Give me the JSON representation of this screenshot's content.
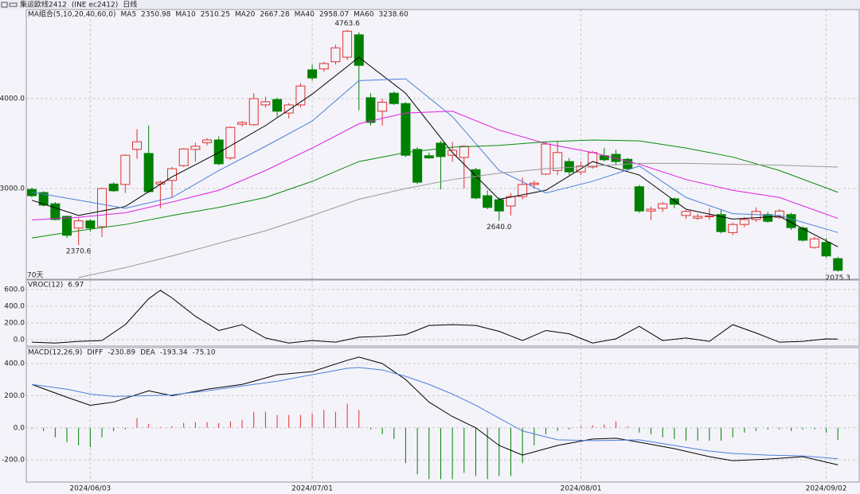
{
  "chart_data": [
    {
      "type": "candlestick",
      "title": "集运欧线2412",
      "subtitle": "(INE ec2412)",
      "period": "日线",
      "legend_title": "MA组合(5,10,20,40,60,0)",
      "legend_title_color": "#3a5fcd",
      "footnote": "70天",
      "categories": [
        null,
        null,
        null,
        null,
        null,
        "2024/06/03",
        null,
        null,
        null,
        null,
        null,
        null,
        null,
        null,
        null,
        null,
        null,
        null,
        null,
        null,
        null,
        null,
        null,
        null,
        "2024/07/01",
        null,
        null,
        null,
        null,
        null,
        null,
        null,
        null,
        null,
        null,
        null,
        null,
        null,
        null,
        null,
        null,
        null,
        null,
        null,
        null,
        null,
        null,
        "2024/08/01",
        null,
        null,
        null,
        null,
        null,
        null,
        null,
        null,
        null,
        null,
        null,
        null,
        null,
        null,
        null,
        null,
        null,
        null,
        null,
        null,
        "2024/09/02",
        null
      ],
      "open": [
        2990,
        2955,
        2830,
        2690,
        2560,
        2640,
        2575,
        3050,
        3045,
        3435,
        3390,
        3050,
        3090,
        3255,
        3435,
        3510,
        3540,
        3340,
        3715,
        3710,
        3930,
        3990,
        3840,
        3930,
        4320,
        4330,
        4410,
        4460,
        4710,
        4010,
        3860,
        4060,
        3945,
        3435,
        3365,
        3505,
        3370,
        3345,
        3210,
        2920,
        2875,
        2805,
        2910,
        3045,
        3160,
        3200,
        3300,
        3185,
        3240,
        3365,
        3380,
        3325,
        3020,
        2750,
        2780,
        2885,
        2700,
        2670,
        2690,
        2710,
        2510,
        2600,
        2655,
        2710,
        2680,
        2710,
        2560,
        2345,
        2400,
        2220
      ],
      "high": [
        3010,
        2970,
        2850,
        2700,
        2670,
        2660,
        3010,
        3070,
        3380,
        3660,
        3700,
        3090,
        3240,
        3450,
        3510,
        3560,
        3580,
        3690,
        3750,
        4060,
        4020,
        4010,
        3950,
        4170,
        4380,
        4410,
        4600,
        4763.6,
        4740,
        4060,
        4000,
        4080,
        3960,
        3460,
        3400,
        3530,
        3520,
        3480,
        3230,
        2980,
        2900,
        2950,
        3120,
        3090,
        3520,
        3530,
        3340,
        3300,
        3420,
        3450,
        3430,
        3340,
        3040,
        2800,
        2850,
        2900,
        2760,
        2720,
        2780,
        2760,
        2620,
        2680,
        2790,
        2740,
        2770,
        2730,
        2580,
        2460,
        2450,
        2240
      ],
      "low": [
        2900,
        2800,
        2645,
        2450,
        2370.6,
        2520,
        2460,
        2960,
        2950,
        3330,
        2950,
        2780,
        2900,
        3240,
        3300,
        3480,
        3260,
        3320,
        3690,
        3700,
        3900,
        3800,
        3780,
        3900,
        4200,
        4300,
        4380,
        4430,
        3870,
        3700,
        3700,
        3930,
        3350,
        3050,
        3330,
        2990,
        3300,
        3000,
        2880,
        2770,
        2640,
        2700,
        2880,
        3000,
        3150,
        3150,
        3150,
        3150,
        3220,
        3300,
        3260,
        3200,
        2730,
        2650,
        2740,
        2780,
        2660,
        2650,
        2650,
        2500,
        2480,
        2570,
        2630,
        2620,
        2660,
        2540,
        2410,
        2330,
        2230,
        2075.3
      ],
      "close": [
        2920,
        2815,
        2655,
        2480,
        2640,
        2560,
        3000,
        2975,
        3370,
        3520,
        2965,
        3070,
        3220,
        3440,
        3470,
        3540,
        3275,
        3680,
        3735,
        4000,
        3965,
        3860,
        3930,
        4140,
        4230,
        4390,
        4565,
        4750,
        4370,
        3735,
        3960,
        3945,
        3370,
        3070,
        3340,
        3355,
        3425,
        3470,
        2895,
        2790,
        2750,
        2910,
        3045,
        3060,
        3495,
        3400,
        3185,
        3250,
        3400,
        3320,
        3300,
        3220,
        2750,
        2770,
        2830,
        2825,
        2745,
        2690,
        2695,
        2520,
        2600,
        2655,
        2745,
        2635,
        2750,
        2565,
        2425,
        2440,
        2250,
        2090
      ],
      "up_color": "#e0302f",
      "down_color": "#008000",
      "series": [
        {
          "name": "MA5",
          "legend_value": "2350.98",
          "color": "#000000",
          "x": [
            0,
            4,
            8,
            12,
            16,
            20,
            24,
            28,
            32,
            36,
            40,
            44,
            48,
            52,
            56,
            60,
            64,
            69
          ],
          "values": [
            2870,
            2700,
            2800,
            3130,
            3400,
            3700,
            4050,
            4460,
            4060,
            3400,
            2880,
            2980,
            3300,
            3150,
            2770,
            2660,
            2690,
            2350.98
          ]
        },
        {
          "name": "MA10",
          "legend_value": "2510.25",
          "color": "#4f7fd8",
          "x": [
            0,
            4,
            8,
            12,
            16,
            20,
            24,
            28,
            32,
            36,
            40,
            44,
            48,
            52,
            56,
            60,
            64,
            69
          ],
          "values": [
            2960,
            2870,
            2780,
            2900,
            3200,
            3470,
            3750,
            4200,
            4220,
            3800,
            3200,
            2950,
            3080,
            3250,
            2900,
            2720,
            2700,
            2510.25
          ]
        },
        {
          "name": "MA20",
          "legend_value": "2667.28",
          "color": "#e020e0",
          "x": [
            0,
            4,
            8,
            12,
            16,
            20,
            24,
            28,
            32,
            36,
            40,
            44,
            48,
            52,
            56,
            60,
            64,
            69
          ],
          "values": [
            2650,
            2680,
            2730,
            2850,
            2980,
            3200,
            3450,
            3720,
            3840,
            3860,
            3650,
            3500,
            3400,
            3270,
            3100,
            2980,
            2900,
            2667.28
          ]
        },
        {
          "name": "MA40",
          "legend_value": "2958.07",
          "color": "#0a8a0a",
          "x": [
            0,
            4,
            8,
            12,
            16,
            20,
            24,
            28,
            32,
            36,
            40,
            44,
            48,
            52,
            56,
            60,
            64,
            69
          ],
          "values": [
            2450,
            2530,
            2600,
            2700,
            2790,
            2900,
            3080,
            3300,
            3400,
            3460,
            3480,
            3520,
            3540,
            3530,
            3450,
            3350,
            3200,
            2958.07
          ]
        },
        {
          "name": "MA60",
          "legend_value": "3238.60",
          "color": "#999999",
          "x": [
            4,
            8,
            12,
            16,
            20,
            24,
            28,
            32,
            36,
            40,
            44,
            48,
            52,
            56,
            60,
            64,
            69
          ],
          "values": [
            2010,
            2120,
            2250,
            2390,
            2530,
            2700,
            2880,
            3000,
            3100,
            3170,
            3220,
            3250,
            3280,
            3280,
            3270,
            3260,
            3238.6
          ]
        }
      ],
      "annotations": [
        {
          "value": 4763.6,
          "label": "4763.6"
        },
        {
          "value": 2370.6,
          "label": "2370.6"
        },
        {
          "value": 2640,
          "label": "2640.0"
        },
        {
          "value": 2075.3,
          "label": "2075.3"
        }
      ],
      "ylim": [
        1991,
        4991
      ],
      "yticks": [
        {
          "value": 3000,
          "label": "3000.0"
        },
        {
          "value": 4000,
          "label": "4000.0"
        }
      ],
      "grid": true
    },
    {
      "type": "line",
      "title": "VROC(12)",
      "title_color": "#3a5fcd",
      "series": [
        {
          "color": "#000000",
          "x": [
            0,
            2,
            4,
            6,
            8,
            10,
            11,
            12,
            14,
            16,
            18,
            20,
            22,
            24,
            26,
            28,
            30,
            32,
            34,
            36,
            38,
            40,
            42,
            44,
            46,
            48,
            50,
            52,
            54,
            56,
            58,
            60,
            62,
            64,
            66,
            68,
            69
          ],
          "values": [
            -30,
            -40,
            -20,
            -10,
            180,
            490,
            590,
            500,
            280,
            110,
            180,
            20,
            -40,
            -10,
            -30,
            30,
            40,
            60,
            170,
            180,
            170,
            100,
            -10,
            110,
            70,
            -40,
            10,
            160,
            -10,
            20,
            -20,
            180,
            80,
            -30,
            -20,
            10,
            6.97
          ]
        }
      ],
      "ylim": [
        -76,
        714
      ],
      "yticks": [
        {
          "value": 600,
          "label": "600.0"
        },
        {
          "value": 400,
          "label": "400.0"
        },
        {
          "value": 200,
          "label": "200.0"
        },
        {
          "value": 0,
          "label": "0.0"
        }
      ],
      "grid": true
    },
    {
      "type": "macd",
      "title": "MACD(12,26,9)",
      "title_color": "#3a5fcd",
      "series": [
        {
          "name": "DIFF",
          "legend_value": "-230.89",
          "color": "#000000",
          "x": [
            0,
            3,
            5,
            7,
            10,
            12,
            15,
            18,
            21,
            24,
            27,
            28,
            30,
            32,
            34,
            36,
            38,
            40,
            42,
            45,
            48,
            50,
            52,
            55,
            58,
            60,
            63,
            66,
            69
          ],
          "values": [
            270,
            190,
            140,
            160,
            230,
            200,
            240,
            270,
            330,
            350,
            420,
            440,
            400,
            300,
            160,
            70,
            0,
            -110,
            -170,
            -110,
            -70,
            -65,
            -90,
            -130,
            -180,
            -205,
            -195,
            -180,
            -230.89
          ]
        },
        {
          "name": "DEA",
          "legend_value": "-193.34",
          "color": "#4f7fd8",
          "x": [
            0,
            3,
            5,
            7,
            10,
            12,
            15,
            18,
            21,
            24,
            27,
            28,
            30,
            32,
            34,
            36,
            38,
            40,
            42,
            45,
            48,
            50,
            52,
            55,
            58,
            60,
            63,
            66,
            69
          ],
          "values": [
            270,
            240,
            210,
            195,
            200,
            205,
            230,
            260,
            290,
            330,
            370,
            375,
            360,
            320,
            270,
            210,
            140,
            60,
            -20,
            -75,
            -80,
            -78,
            -75,
            -110,
            -145,
            -160,
            -170,
            -175,
            -193.34
          ]
        }
      ],
      "histogram": {
        "legend_value": "-75.10",
        "up_color": "#e0302f",
        "down_color": "#008000",
        "values": [
          -5,
          -20,
          -60,
          -90,
          -110,
          -120,
          -60,
          -20,
          -10,
          60,
          25,
          5,
          10,
          30,
          35,
          35,
          30,
          40,
          50,
          100,
          100,
          80,
          80,
          80,
          90,
          110,
          100,
          150,
          110,
          -10,
          -40,
          -70,
          -220,
          -290,
          -320,
          -320,
          -320,
          -280,
          -300,
          -320,
          -300,
          -300,
          -220,
          -110,
          -40,
          -20,
          -10,
          10,
          15,
          20,
          40,
          10,
          -30,
          -40,
          -60,
          -70,
          -80,
          -80,
          -80,
          -80,
          -60,
          -30,
          -20,
          -10,
          -10,
          -20,
          -10,
          -10,
          -30,
          -75.1
        ]
      },
      "ylim": [
        -338,
        499
      ],
      "yticks": [
        {
          "value": 400,
          "label": "400.0"
        },
        {
          "value": 200,
          "label": "200.0"
        },
        {
          "value": 0,
          "label": "0.0"
        },
        {
          "value": -200,
          "label": "-200.0"
        }
      ],
      "grid": true
    }
  ]
}
